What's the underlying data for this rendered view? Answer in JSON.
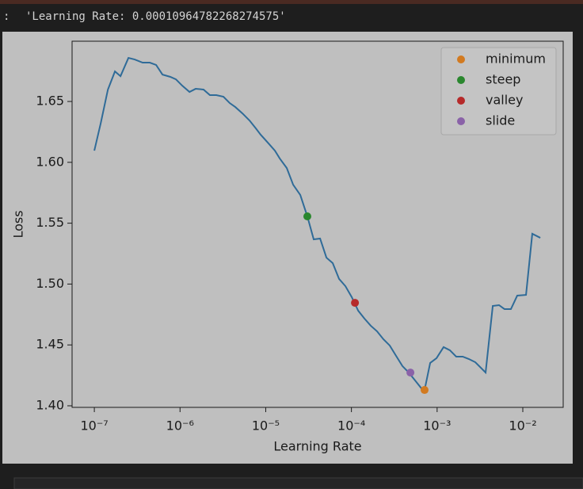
{
  "output": {
    "prompt": ":",
    "text": "'Learning Rate: 0.00010964782268274575'"
  },
  "chart_data": {
    "type": "line",
    "xlabel": "Learning Rate",
    "ylabel": "Loss",
    "xscale": "log",
    "legend": "upper right",
    "color": "#2f6b98",
    "xlim": [
      5.5e-08,
      0.0296
    ],
    "ylim": [
      1.3987,
      1.6995
    ],
    "xticks": [
      {
        "value": 1e-07,
        "label": "10⁻⁷"
      },
      {
        "value": 1e-06,
        "label": "10⁻⁶"
      },
      {
        "value": 1e-05,
        "label": "10⁻⁵"
      },
      {
        "value": 0.0001,
        "label": "10⁻⁴"
      },
      {
        "value": 0.001,
        "label": "10⁻³"
      },
      {
        "value": 0.01,
        "label": "10⁻²"
      }
    ],
    "yticks": [
      {
        "value": 1.4,
        "label": "1.40"
      },
      1.45,
      {
        "value": 1.5,
        "label": "1.50"
      },
      1.55,
      {
        "value": 1.6,
        "label": "1.60"
      },
      1.65
    ],
    "x": [
      1e-07,
      1.19e-07,
      1.44e-07,
      1.74e-07,
      2.02e-07,
      2.5e-07,
      2.96e-07,
      3.66e-07,
      4.44e-07,
      5.26e-07,
      6.24e-07,
      7.71e-07,
      8.95e-07,
      1.06e-06,
      1.29e-06,
      1.52e-06,
      1.88e-06,
      2.23e-06,
      2.65e-06,
      3.21e-06,
      3.8e-06,
      4.42e-06,
      5.35e-06,
      6.47e-06,
      7.67e-06,
      8.73e-06,
      1.06e-05,
      1.28e-05,
      1.46e-05,
      1.76e-05,
      2.09e-05,
      2.53e-05,
      3.06e-05,
      3.63e-05,
      4.31e-05,
      5.11e-05,
      6.05e-05,
      7.18e-05,
      8.51e-05,
      0.000101,
      0.00012,
      0.000142,
      0.000168,
      0.000199,
      0.000236,
      0.00028,
      0.000332,
      0.000394,
      0.000467,
      0.000553,
      0.000656,
      0.000714,
      0.00083,
      0.000984,
      0.00119,
      0.00141,
      0.00167,
      0.00199,
      0.00235,
      0.00279,
      0.00317,
      0.00368,
      0.00446,
      0.00528,
      0.00612,
      0.00726,
      0.00861,
      0.0109,
      0.0129,
      0.016
    ],
    "values": [
      1.6096,
      1.6324,
      1.6598,
      1.6747,
      1.6708,
      1.6858,
      1.6845,
      1.6819,
      1.6819,
      1.68,
      1.6721,
      1.6702,
      1.6682,
      1.663,
      1.6578,
      1.6604,
      1.6598,
      1.6552,
      1.6552,
      1.6539,
      1.6487,
      1.6454,
      1.6402,
      1.6344,
      1.6279,
      1.6227,
      1.6161,
      1.6096,
      1.6031,
      1.5953,
      1.5816,
      1.5732,
      1.5556,
      1.5367,
      1.5374,
      1.5217,
      1.5172,
      1.5042,
      1.4983,
      1.4892,
      1.4781,
      1.4716,
      1.4658,
      1.4612,
      1.4547,
      1.4495,
      1.441,
      1.4326,
      1.4273,
      1.4208,
      1.4143,
      1.413,
      1.4352,
      1.4391,
      1.4482,
      1.4456,
      1.4404,
      1.4404,
      1.4384,
      1.4358,
      1.4319,
      1.4273,
      1.482,
      1.4827,
      1.4794,
      1.4794,
      1.4905,
      1.4911,
      1.5413,
      1.538
    ],
    "points": [
      {
        "name": "minimum",
        "color": "#d27a20",
        "x": 0.000714,
        "y": 1.413
      },
      {
        "name": "steep",
        "color": "#2a872e",
        "x": 3.06e-05,
        "y": 1.5556
      },
      {
        "name": "valley",
        "color": "#b62a2a",
        "x": 0.00011,
        "y": 1.4846
      },
      {
        "name": "slide",
        "color": "#8a62a8",
        "x": 0.000488,
        "y": 1.4273
      }
    ]
  }
}
